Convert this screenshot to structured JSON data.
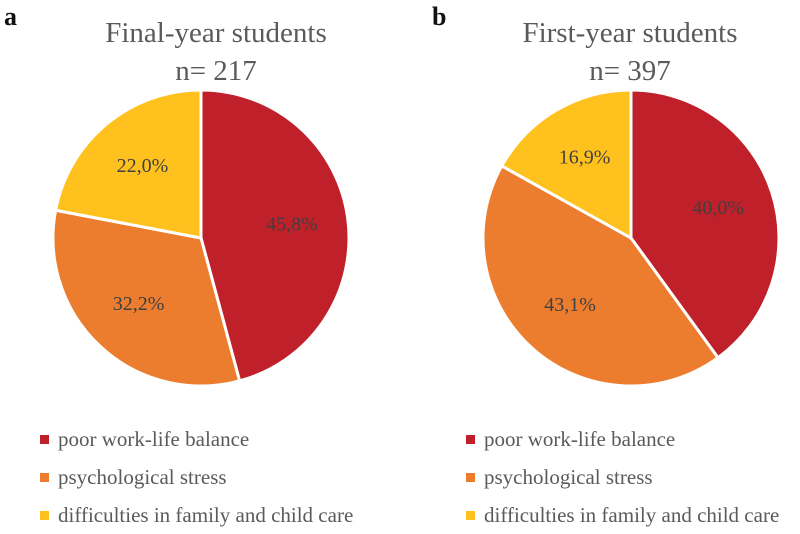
{
  "chart_data": [
    {
      "type": "pie",
      "panel_label": "a",
      "title": "Final-year students",
      "subtitle": "n= 217",
      "slices": [
        {
          "label": "poor work-life balance",
          "value": 45.8,
          "display": "45,8%",
          "color": "#c0202a"
        },
        {
          "label": "psychological stress",
          "value": 32.2,
          "display": "32,2%",
          "color": "#ec7d2e"
        },
        {
          "label": "difficulties in family and child care",
          "value": 22.0,
          "display": "22,0%",
          "color": "#ffc11e"
        }
      ]
    },
    {
      "type": "pie",
      "panel_label": "b",
      "title": "First-year students",
      "subtitle": "n= 397",
      "slices": [
        {
          "label": "poor work-life balance",
          "value": 40.0,
          "display": "40,0%",
          "color": "#c0202a"
        },
        {
          "label": "psychological stress",
          "value": 43.1,
          "display": "43,1%",
          "color": "#ec7d2e"
        },
        {
          "label": "difficulties in family and child care",
          "value": 16.9,
          "display": "16,9%",
          "color": "#ffc11e"
        }
      ]
    }
  ]
}
